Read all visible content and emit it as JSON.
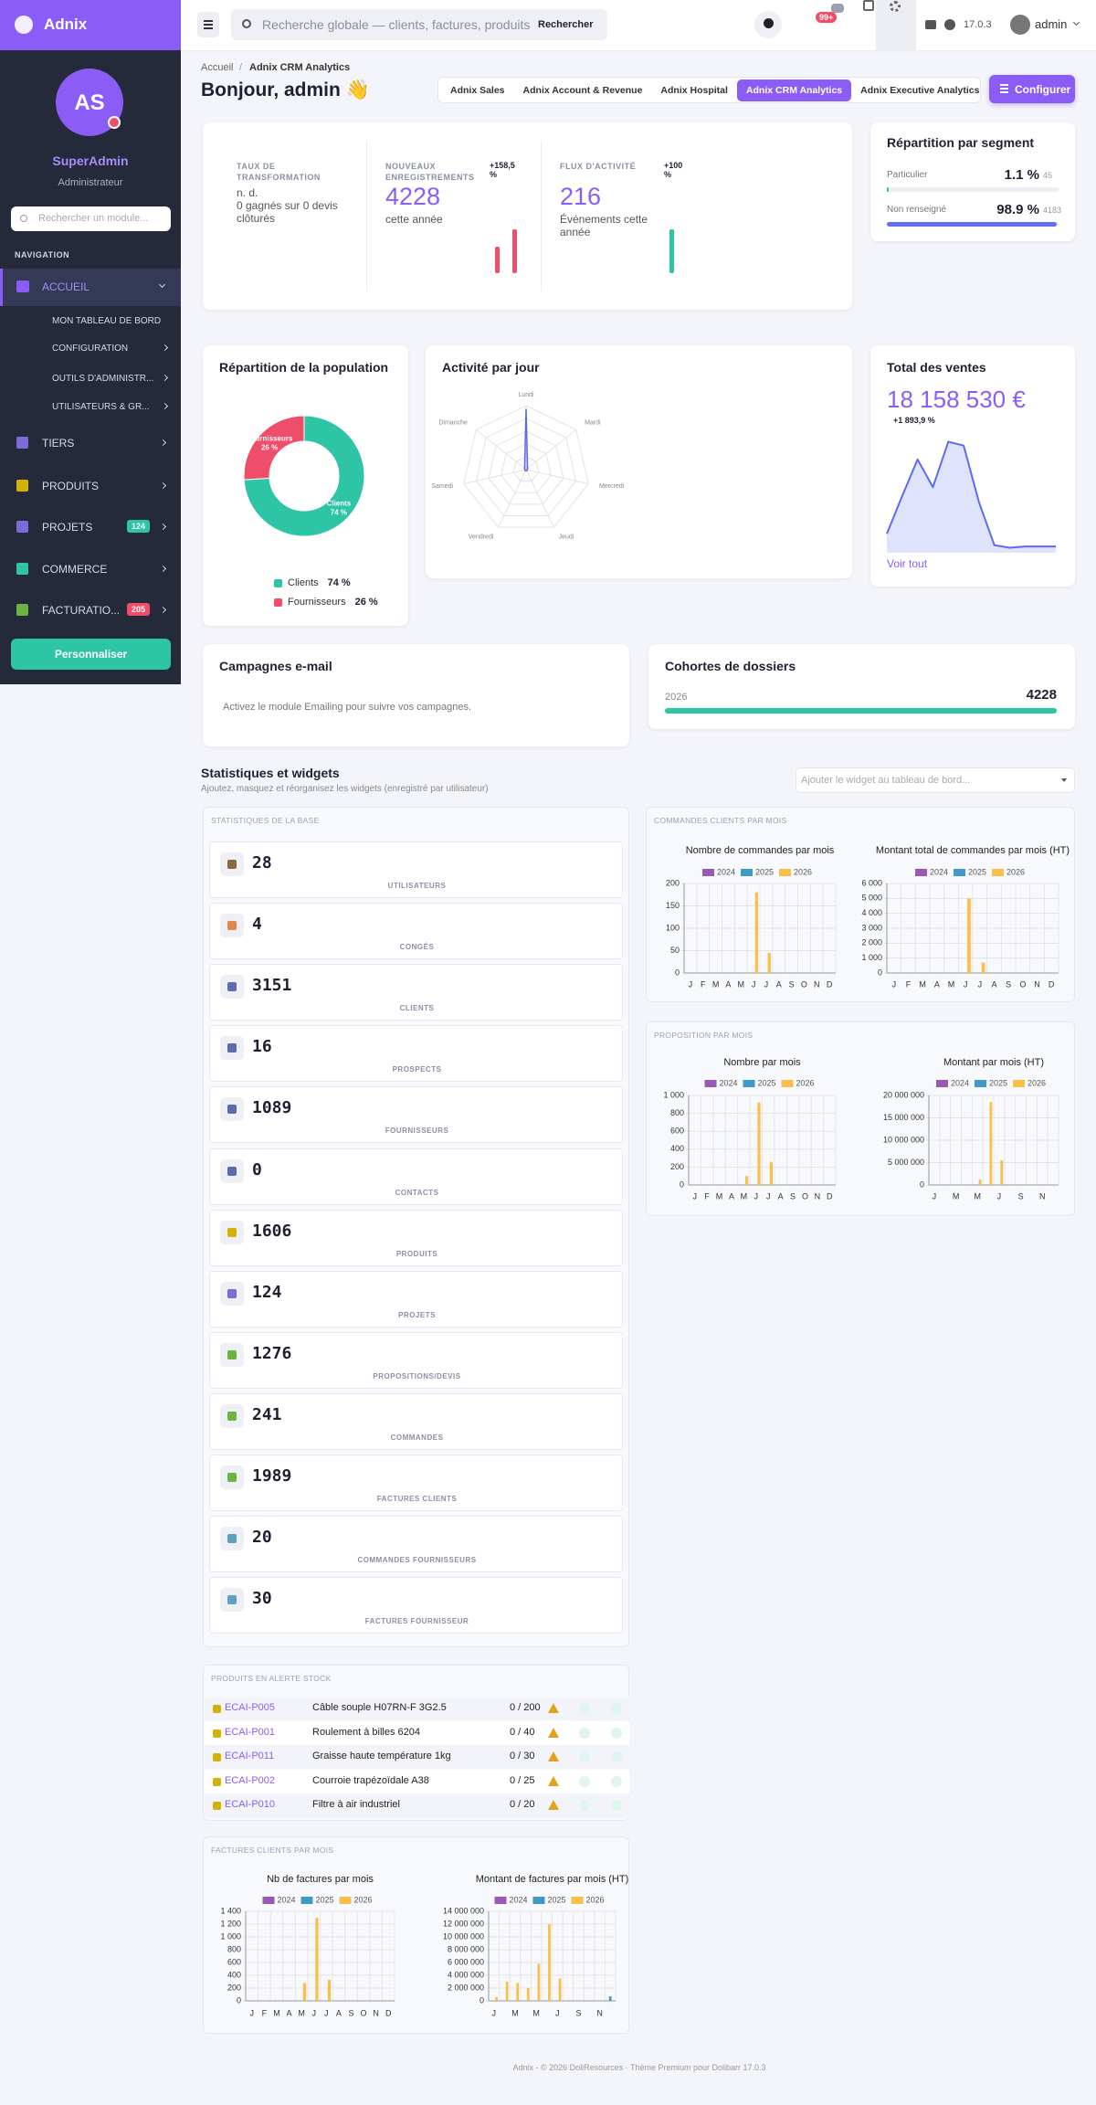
{
  "sidebar": {
    "brand": "Adnix",
    "avatar": "AS",
    "user": "SuperAdmin",
    "role": "Administrateur",
    "search": "Rechercher un module...",
    "section": "NAVIGATION",
    "active": "ACCUEIL",
    "submenu": [
      "MON TABLEAU DE BORD",
      "CONFIGURATION",
      "OUTILS D'ADMINISTR...",
      "UTILISATEURS & GR..."
    ],
    "menu": [
      {
        "label": "TIERS",
        "color": "#7c6cd8"
      },
      {
        "label": "PRODUITS",
        "color": "#d4b106"
      },
      {
        "label": "PROJETS",
        "color": "#7c6cd8",
        "badge": "124",
        "badge_color": "#2ec4a6"
      },
      {
        "label": "COMMERCE",
        "color": "#2ec4a6"
      },
      {
        "label": "FACTURATIO...",
        "color": "#6db33f",
        "badge": "205",
        "badge_color": "#ef4e6a"
      }
    ],
    "button": "Personnaliser"
  },
  "topbar": {
    "search": "Recherche globale — clients, factures, produits",
    "search_button": "Rechercher",
    "notifications": "99+",
    "version": "17.0.3",
    "user": "admin"
  },
  "breadcrumb": {
    "items": [
      "Accueil",
      "Adnix CRM Analytics"
    ],
    "separator": "/"
  },
  "greeting": "Bonjour, admin 👋",
  "tabs": {
    "items": [
      "Adnix Sales",
      "Adnix Account & Revenue",
      "Adnix Hospital",
      "Adnix CRM Analytics",
      "Adnix Executive Analytics"
    ],
    "active": 3
  },
  "configure": "Configurer",
  "kpis": [
    {
      "label": "TAUX DE TRANSFORMATION",
      "value": "n. d.",
      "note": "0 gagnés sur 0 devis clôturés"
    },
    {
      "label": "NOUVEAUX ENREGISTREMENTS",
      "value": 4228,
      "delta": "+158,5 %",
      "note": "cette année",
      "trend": [
        0.6,
        1
      ],
      "color": "#ef4e6a"
    },
    {
      "label": "FLUX D'ACTIVITÉ",
      "value": 216,
      "delta": "+100 %",
      "note": "Événements cette année",
      "trend": [
        1
      ],
      "color": "#2ec4a6"
    }
  ],
  "segments": {
    "title": "Répartition par segment",
    "rows": [
      {
        "label": "Particulier",
        "value": 1.1,
        "value_label": "1.1 %",
        "count": 45,
        "color": "#2ec4a6"
      },
      {
        "label": "Non renseigné",
        "value": 98.9,
        "value_label": "98.9 %",
        "count": 4183,
        "color": "#6470f0"
      }
    ]
  },
  "population": {
    "type": "pie",
    "title": "Répartition de la population",
    "categories": [
      "Clients",
      "Fournisseurs"
    ],
    "values": [
      74,
      26
    ],
    "value_labels": [
      "74 %",
      "26 %"
    ],
    "colors": [
      "#2ec4a6",
      "#ef4e6a"
    ]
  },
  "activity": {
    "type": "radar",
    "title": "Activité par jour",
    "categories": [
      "Lundi",
      "Mardi",
      "Mercredi",
      "Jeudi",
      "Vendredi",
      "Samedi",
      "Dimanche"
    ],
    "values": [
      95,
      3,
      2,
      2,
      2,
      2,
      3
    ],
    "rlim": [
      0,
      100
    ],
    "color": "#5b6cf0"
  },
  "sales": {
    "type": "area",
    "title": "Total des ventes",
    "amount": "18 158 530 €",
    "delta": "+1 893,9 %",
    "values": [
      15,
      45,
      74,
      52,
      88,
      85,
      40,
      6,
      4,
      5,
      5,
      5
    ],
    "ylim": [
      0,
      100
    ],
    "color": "#5b6cf0",
    "link": "Voir tout"
  },
  "campaigns": {
    "title": "Campagnes e-mail",
    "message": "Activez le module Emailing pour suivre vos campagnes."
  },
  "cohorts": {
    "title": "Cohortes de dossiers",
    "rows": [
      {
        "label": "2026",
        "value": 4228
      }
    ],
    "color": "#2ec4a6"
  },
  "widgets_section": {
    "title": "Statistiques et widgets",
    "subtitle": "Ajoutez, masquez et réorganisez les widgets (enregistré par utilisateur)",
    "select": "Ajouter le widget au tableau de bord..."
  },
  "stats": {
    "title": "STATISTIQUES DE LA BASE",
    "items": [
      {
        "value": 28,
        "label": "UTILISATEURS"
      },
      {
        "value": 4,
        "label": "CONGÉS"
      },
      {
        "value": 3151,
        "label": "CLIENTS"
      },
      {
        "value": 16,
        "label": "PROSPECTS"
      },
      {
        "value": 1089,
        "label": "FOURNISSEURS"
      },
      {
        "value": 0,
        "label": "CONTACTS"
      },
      {
        "value": 1606,
        "label": "PRODUITS"
      },
      {
        "value": 124,
        "label": "PROJETS"
      },
      {
        "value": 1276,
        "label": "PROPOSITIONS/DEVIS"
      },
      {
        "value": 241,
        "label": "COMMANDES"
      },
      {
        "value": 1989,
        "label": "FACTURES CLIENTS"
      },
      {
        "value": 20,
        "label": "COMMANDES FOURNISSEURS"
      },
      {
        "value": 30,
        "label": "FACTURES FOURNISSEUR"
      }
    ]
  },
  "orders": {
    "title": "COMMANDES CLIENTS PAR MOIS",
    "charts": [
      {
        "type": "bar",
        "title": "Nombre de commandes par mois",
        "categories": [
          "J",
          "F",
          "M",
          "A",
          "M",
          "J",
          "J",
          "A",
          "S",
          "O",
          "N",
          "D"
        ],
        "series": [
          {
            "name": "2024",
            "color": "#9b59b6",
            "values": [
              0,
              0,
              0,
              0,
              0,
              0,
              0,
              0,
              0,
              0,
              0,
              0
            ]
          },
          {
            "name": "2025",
            "color": "#3d9ac9",
            "values": [
              0,
              0,
              0,
              0,
              0,
              0,
              0,
              0,
              0,
              0,
              0,
              0
            ]
          },
          {
            "name": "2026",
            "color": "#f9bf4a",
            "values": [
              0,
              0,
              0,
              0,
              0,
              180,
              45,
              0,
              0,
              0,
              0,
              0
            ]
          }
        ],
        "ylim": [
          0,
          200
        ],
        "yticks": [
          0,
          50,
          100,
          150,
          200
        ]
      },
      {
        "type": "bar",
        "title": "Montant total de commandes par mois (HT)",
        "categories": [
          "J",
          "F",
          "M",
          "A",
          "M",
          "J",
          "J",
          "A",
          "S",
          "O",
          "N",
          "D"
        ],
        "series": [
          {
            "name": "2024",
            "color": "#9b59b6",
            "values": [
              0,
              0,
              0,
              0,
              0,
              0,
              0,
              0,
              0,
              0,
              0,
              0
            ]
          },
          {
            "name": "2025",
            "color": "#3d9ac9",
            "values": [
              0,
              0,
              0,
              0,
              0,
              0,
              0,
              0,
              0,
              0,
              0,
              0
            ]
          },
          {
            "name": "2026",
            "color": "#f9bf4a",
            "values": [
              0,
              0,
              0,
              0,
              0,
              5000,
              700,
              0,
              0,
              0,
              0,
              0
            ]
          }
        ],
        "ylim": [
          0,
          6000
        ],
        "yticks": [
          0,
          {
            "value": 1000,
            "label": "1 000"
          },
          {
            "value": 2000,
            "label": "2 000"
          },
          {
            "value": 3000,
            "label": "3 000"
          },
          {
            "value": 4000,
            "label": "4 000"
          },
          {
            "value": 5000,
            "label": "5 000"
          },
          {
            "value": 6000,
            "label": "6 000"
          }
        ]
      }
    ]
  },
  "proposals": {
    "title": "PROPOSITION PAR MOIS",
    "charts": [
      {
        "type": "bar",
        "title": "Nombre par mois",
        "categories": [
          "J",
          "F",
          "M",
          "A",
          "M",
          "J",
          "J",
          "A",
          "S",
          "O",
          "N",
          "D"
        ],
        "series": [
          {
            "name": "2024",
            "color": "#9b59b6",
            "values": [
              0,
              0,
              0,
              0,
              0,
              0,
              0,
              0,
              0,
              0,
              0,
              0
            ]
          },
          {
            "name": "2025",
            "color": "#3d9ac9",
            "values": [
              0,
              0,
              0,
              0,
              0,
              0,
              0,
              0,
              0,
              0,
              0,
              0
            ]
          },
          {
            "name": "2026",
            "color": "#f9bf4a",
            "values": [
              0,
              0,
              0,
              0,
              100,
              920,
              260,
              0,
              0,
              0,
              0,
              0
            ]
          }
        ],
        "ylim": [
          0,
          1000
        ],
        "yticks": [
          0,
          200,
          400,
          600,
          800,
          {
            "value": 1000,
            "label": "1 000"
          }
        ]
      },
      {
        "type": "bar",
        "title": "Montant par mois (HT)",
        "categories": [
          "J",
          null,
          "M",
          null,
          "M",
          null,
          "J",
          null,
          "S",
          null,
          "N",
          null
        ],
        "series": [
          {
            "name": "2024",
            "color": "#9b59b6",
            "values": [
              0,
              0,
              0,
              0,
              0,
              0,
              0,
              0,
              0,
              0,
              0,
              0
            ]
          },
          {
            "name": "2025",
            "color": "#3d9ac9",
            "values": [
              0,
              0,
              0,
              0,
              0,
              0,
              0,
              0,
              0,
              0,
              0,
              0
            ]
          },
          {
            "name": "2026",
            "color": "#f9bf4a",
            "values": [
              0,
              0,
              0,
              0,
              1200000,
              18500000,
              5500000,
              0,
              0,
              0,
              0,
              0
            ]
          }
        ],
        "ylim": [
          0,
          20000000
        ],
        "yticks": [
          0,
          {
            "value": 5000000,
            "label": "5 000 000"
          },
          {
            "value": 10000000,
            "label": "10 000 000"
          },
          {
            "value": 15000000,
            "label": "15 000 000"
          },
          {
            "value": 20000000,
            "label": "20 000 000"
          }
        ]
      }
    ]
  },
  "stock": {
    "title": "PRODUITS EN ALERTE STOCK",
    "rows": [
      {
        "ref": "ECAI-P005",
        "name": "Câble souple H07RN-F 3G2.5",
        "qty": "0 / 200"
      },
      {
        "ref": "ECAI-P001",
        "name": "Roulement à billes 6204",
        "qty": "0 / 40"
      },
      {
        "ref": "ECAI-P011",
        "name": "Graisse haute température 1kg",
        "qty": "0 / 30"
      },
      {
        "ref": "ECAI-P002",
        "name": "Courroie trapézoïdale A38",
        "qty": "0 / 25"
      },
      {
        "ref": "ECAI-P010",
        "name": "Filtre à air industriel",
        "qty": "0 / 20"
      }
    ]
  },
  "invoices": {
    "title": "FACTURES CLIENTS PAR MOIS",
    "charts": [
      {
        "type": "bar",
        "title": "Nb de factures par mois",
        "categories": [
          "J",
          "F",
          "M",
          "A",
          "M",
          "J",
          "J",
          "A",
          "S",
          "O",
          "N",
          "D"
        ],
        "series": [
          {
            "name": "2024",
            "color": "#9b59b6",
            "values": [
              0,
              0,
              0,
              0,
              0,
              0,
              0,
              0,
              0,
              0,
              0,
              0
            ]
          },
          {
            "name": "2025",
            "color": "#3d9ac9",
            "values": [
              0,
              0,
              0,
              0,
              0,
              0,
              0,
              0,
              0,
              0,
              0,
              0
            ]
          },
          {
            "name": "2026",
            "color": "#f9bf4a",
            "values": [
              0,
              0,
              0,
              0,
              280,
              1300,
              330,
              0,
              0,
              0,
              0,
              0
            ]
          }
        ],
        "ylim": [
          0,
          1400
        ],
        "yticks": [
          0,
          200,
          400,
          600,
          800,
          {
            "value": 1000,
            "label": "1 000"
          },
          {
            "value": 1200,
            "label": "1 200"
          },
          {
            "value": 1400,
            "label": "1 400"
          }
        ]
      },
      {
        "type": "bar",
        "title": "Montant de factures par mois (HT)",
        "categories": [
          "J",
          null,
          "M",
          null,
          "M",
          null,
          "J",
          null,
          "S",
          null,
          "N",
          null
        ],
        "series": [
          {
            "name": "2024",
            "color": "#9b59b6",
            "values": [
              0,
              0,
              0,
              0,
              0,
              0,
              0,
              0,
              0,
              0,
              0,
              0
            ]
          },
          {
            "name": "2025",
            "color": "#3d9ac9",
            "values": [
              0,
              0,
              0,
              0,
              0,
              0,
              0,
              0,
              0,
              0,
              0,
              700000
            ]
          },
          {
            "name": "2026",
            "color": "#f9bf4a",
            "values": [
              600000,
              3000000,
              2800000,
              2000000,
              5800000,
              12000000,
              3500000,
              0,
              0,
              0,
              0,
              0
            ]
          }
        ],
        "ylim": [
          0,
          14000000
        ],
        "yticks": [
          0,
          {
            "value": 2000000,
            "label": "2 000 000"
          },
          {
            "value": 4000000,
            "label": "4 000 000"
          },
          {
            "value": 6000000,
            "label": "6 000 000"
          },
          {
            "value": 8000000,
            "label": "8 000 000"
          },
          {
            "value": 10000000,
            "label": "10 000 000"
          },
          {
            "value": 12000000,
            "label": "12 000 000"
          },
          {
            "value": 14000000,
            "label": "14 000 000"
          }
        ]
      }
    ]
  },
  "footer": "Adnix - © 2026 DoliResources · Thème Premium pour Dolibarr 17.0.3"
}
